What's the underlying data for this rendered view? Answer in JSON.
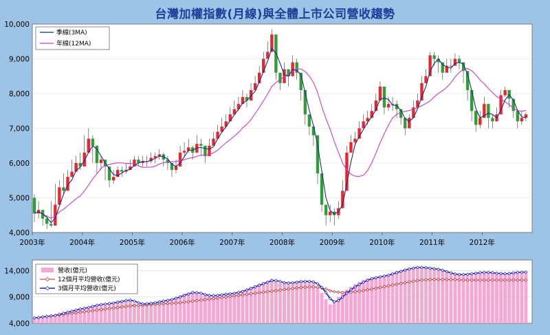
{
  "title": "台灣加權指數(月線)與全體上市公司營收趨勢",
  "colors": {
    "background": "#9dc3e6",
    "plot_bg": "#ffffff",
    "title": "#1f3d99",
    "up_candle": "#e8262e",
    "down_candle": "#2f9e35",
    "ma3": "#1c2a8f",
    "ma12": "#c63fc6",
    "revenue_bar": "#f5a8d2",
    "rev_ma12": "#c0272d",
    "rev_ma3": "#1a22c9"
  },
  "chart_data": [
    {
      "type": "candlestick",
      "name": "index",
      "ylim": [
        4000,
        10000
      ],
      "yticks": [
        "4,000",
        "5,000",
        "6,000",
        "7,000",
        "8,000",
        "9,000",
        "10,000"
      ],
      "yticks_values": [
        4000,
        5000,
        6000,
        7000,
        8000,
        9000,
        10000
      ],
      "xticks": [
        "2003年",
        "2004年",
        "2005年",
        "2006年",
        "2007年",
        "2008年",
        "2009年",
        "2010年",
        "2011年",
        "2012年"
      ],
      "x_start": "2003-01",
      "legend": [
        {
          "label": "季線(3MA)",
          "series": "ma3"
        },
        {
          "label": "年線(12MA)",
          "series": "ma12"
        }
      ],
      "closes": [
        4550,
        4650,
        4400,
        4250,
        4200,
        4800,
        5300,
        5200,
        5600,
        5750,
        6000,
        5900,
        6300,
        6700,
        6500,
        6000,
        6100,
        5900,
        5500,
        5600,
        5800,
        5750,
        5800,
        5900,
        6100,
        6000,
        6050,
        6050,
        6150,
        6200,
        6250,
        6100,
        6000,
        5800,
        5900,
        6300,
        6350,
        6450,
        6300,
        6550,
        6500,
        6200,
        6500,
        6700,
        6900,
        7050,
        7200,
        7400,
        7550,
        7700,
        7900,
        7800,
        8100,
        8300,
        8600,
        9000,
        9200,
        9700,
        8600,
        8300,
        8700,
        8500,
        8900,
        8600,
        8100,
        7400,
        7050,
        6800,
        5700,
        4800,
        4500,
        4600,
        4500,
        4700,
        5200,
        6300,
        6600,
        6700,
        7000,
        7200,
        7300,
        7500,
        7800,
        8200,
        7600,
        7700,
        7700,
        7550,
        7300,
        7000,
        7300,
        7600,
        7800,
        8300,
        8500,
        9100,
        9000,
        8900,
        8600,
        8800,
        8800,
        9000,
        8900,
        8650,
        8100,
        7500,
        7100,
        7300,
        7700,
        7300,
        7200,
        7400,
        7950,
        8100,
        7850,
        7500,
        7200,
        7300,
        7400
      ],
      "ranges": [
        [
          4300,
          5100
        ],
        [
          4400,
          4900
        ],
        [
          4200,
          4600
        ],
        [
          4100,
          4500
        ],
        [
          4150,
          4900
        ],
        [
          4700,
          5400
        ],
        [
          5100,
          5500
        ],
        [
          5100,
          5700
        ],
        [
          5500,
          5800
        ],
        [
          5700,
          6100
        ],
        [
          5800,
          6200
        ],
        [
          5800,
          6300
        ],
        [
          6200,
          6800
        ],
        [
          6300,
          7000
        ],
        [
          6000,
          6800
        ],
        [
          5700,
          6200
        ],
        [
          5800,
          6200
        ],
        [
          5500,
          6100
        ],
        [
          5300,
          5700
        ],
        [
          5400,
          5800
        ],
        [
          5600,
          5900
        ],
        [
          5600,
          5900
        ],
        [
          5700,
          6000
        ],
        [
          5800,
          6100
        ],
        [
          5900,
          6200
        ],
        [
          5900,
          6200
        ],
        [
          5900,
          6200
        ],
        [
          5900,
          6200
        ],
        [
          6000,
          6300
        ],
        [
          6000,
          6300
        ],
        [
          6100,
          6400
        ],
        [
          5900,
          6300
        ],
        [
          5800,
          6200
        ],
        [
          5600,
          6000
        ],
        [
          5700,
          6100
        ],
        [
          6100,
          6500
        ],
        [
          6200,
          6600
        ],
        [
          6300,
          6700
        ],
        [
          6100,
          6500
        ],
        [
          6400,
          6800
        ],
        [
          6200,
          6700
        ],
        [
          6000,
          6400
        ],
        [
          6300,
          6700
        ],
        [
          6500,
          6900
        ],
        [
          6700,
          7100
        ],
        [
          6900,
          7300
        ],
        [
          7000,
          7400
        ],
        [
          7200,
          7600
        ],
        [
          7400,
          7800
        ],
        [
          7500,
          7900
        ],
        [
          7700,
          8100
        ],
        [
          7600,
          8000
        ],
        [
          7900,
          8300
        ],
        [
          8100,
          8500
        ],
        [
          8400,
          8800
        ],
        [
          8800,
          9200
        ],
        [
          9000,
          9500
        ],
        [
          9400,
          9850
        ],
        [
          8400,
          9100
        ],
        [
          8100,
          8600
        ],
        [
          8400,
          8900
        ],
        [
          8200,
          8700
        ],
        [
          8600,
          9100
        ],
        [
          8400,
          9000
        ],
        [
          7800,
          8400
        ],
        [
          7100,
          7700
        ],
        [
          6800,
          7300
        ],
        [
          6500,
          7100
        ],
        [
          5400,
          6100
        ],
        [
          4600,
          5200
        ],
        [
          4200,
          4700
        ],
        [
          4300,
          4800
        ],
        [
          4200,
          4700
        ],
        [
          4400,
          4900
        ],
        [
          4900,
          5500
        ],
        [
          5900,
          6500
        ],
        [
          6300,
          6800
        ],
        [
          6500,
          6900
        ],
        [
          6800,
          7200
        ],
        [
          7000,
          7400
        ],
        [
          7100,
          7500
        ],
        [
          7300,
          7700
        ],
        [
          7600,
          8000
        ],
        [
          7900,
          8350
        ],
        [
          7400,
          8000
        ],
        [
          7500,
          7900
        ],
        [
          7500,
          7900
        ],
        [
          7300,
          7800
        ],
        [
          7100,
          7500
        ],
        [
          6800,
          7200
        ],
        [
          7000,
          7400
        ],
        [
          7400,
          7800
        ],
        [
          7600,
          8000
        ],
        [
          8100,
          8500
        ],
        [
          8300,
          8700
        ],
        [
          8800,
          9200
        ],
        [
          8800,
          9200
        ],
        [
          8600,
          9100
        ],
        [
          8400,
          8800
        ],
        [
          8600,
          9000
        ],
        [
          8600,
          9000
        ],
        [
          8800,
          9150
        ],
        [
          8700,
          9100
        ],
        [
          8300,
          8800
        ],
        [
          7800,
          8300
        ],
        [
          7200,
          7700
        ],
        [
          6900,
          7400
        ],
        [
          7000,
          7500
        ],
        [
          7400,
          7900
        ],
        [
          7000,
          7500
        ],
        [
          7000,
          7400
        ],
        [
          7200,
          7600
        ],
        [
          7700,
          8100
        ],
        [
          7900,
          8200
        ],
        [
          7600,
          8000
        ],
        [
          7300,
          7700
        ],
        [
          7000,
          7400
        ],
        [
          7100,
          7500
        ],
        [
          7200,
          7450
        ]
      ]
    },
    {
      "type": "bar+line",
      "name": "revenue",
      "ylim": [
        4000,
        16000
      ],
      "yticks": [
        "4,000",
        "9,000",
        "14,000"
      ],
      "yticks_values": [
        4000,
        9000,
        14000
      ],
      "x_start": "2003-01",
      "legend": [
        {
          "label": "營收(億元)",
          "series": "revenue"
        },
        {
          "label": "12個月平均營收(億元)",
          "series": "rev_ma12"
        },
        {
          "label": "3個月平均營收(億元)",
          "series": "rev_ma3"
        }
      ],
      "revenue": [
        4800,
        5000,
        5200,
        5400,
        5500,
        5600,
        5800,
        6000,
        6200,
        6400,
        6600,
        6800,
        6900,
        7100,
        7300,
        7500,
        7600,
        7700,
        7800,
        7900,
        8100,
        8300,
        8400,
        8500,
        7800,
        7600,
        7700,
        7800,
        7900,
        8000,
        8200,
        8300,
        8500,
        8700,
        9000,
        9300,
        9600,
        9800,
        10100,
        9700,
        9400,
        9300,
        9200,
        9300,
        9400,
        9500,
        9600,
        9700,
        9800,
        10000,
        10300,
        10600,
        10900,
        11200,
        11500,
        11800,
        12100,
        12400,
        11900,
        11600,
        11600,
        11700,
        11800,
        11900,
        12000,
        12000,
        11900,
        11700,
        11000,
        9800,
        8600,
        7600,
        8200,
        9000,
        9800,
        10400,
        10900,
        11400,
        11800,
        12200,
        12500,
        12700,
        12800,
        12900,
        13100,
        13300,
        13600,
        13900,
        14100,
        14300,
        14500,
        14600,
        14700,
        14600,
        14500,
        14400,
        14300,
        14200,
        14000,
        13700,
        13400,
        13300,
        13200,
        13200,
        13300,
        13400,
        13500,
        13600,
        13700,
        13700,
        13600,
        13500,
        13400,
        13400,
        13400,
        13500,
        13600,
        13700,
        13700
      ],
      "rev_ma12": [
        5000,
        5100,
        5200,
        5300,
        5400,
        5500,
        5600,
        5700,
        5800,
        5900,
        6000,
        6100,
        6200,
        6300,
        6400,
        6500,
        6600,
        6700,
        6800,
        6900,
        7000,
        7100,
        7200,
        7300,
        7350,
        7400,
        7450,
        7500,
        7550,
        7600,
        7650,
        7700,
        7750,
        7800,
        7850,
        7900,
        8000,
        8100,
        8200,
        8300,
        8400,
        8500,
        8600,
        8700,
        8800,
        8900,
        9000,
        9100,
        9200,
        9300,
        9400,
        9500,
        9600,
        9700,
        9800,
        9900,
        10000,
        10100,
        10200,
        10300,
        10400,
        10500,
        10600,
        10700,
        10800,
        10850,
        10900,
        10900,
        10850,
        10700,
        10500,
        10200,
        10000,
        9900,
        9850,
        9850,
        9900,
        10000,
        10100,
        10200,
        10350,
        10500,
        10650,
        10800,
        10950,
        11100,
        11250,
        11400,
        11550,
        11700,
        11850,
        12000,
        12100,
        12200,
        12250,
        12300,
        12300,
        12300,
        12300,
        12300,
        12300,
        12300,
        12250,
        12200,
        12200,
        12200,
        12200,
        12200,
        12200,
        12200,
        12200,
        12200,
        12200,
        12200,
        12200,
        12200,
        12200,
        12200,
        12200
      ],
      "rev_ma3": [
        5000,
        5100,
        5200,
        5300,
        5400,
        5500,
        5700,
        5900,
        6100,
        6300,
        6500,
        6700,
        6850,
        7000,
        7200,
        7400,
        7550,
        7650,
        7750,
        7850,
        8000,
        8150,
        8300,
        8400,
        8200,
        7900,
        7700,
        7700,
        7800,
        7900,
        8050,
        8200,
        8350,
        8500,
        8750,
        9000,
        9300,
        9550,
        9800,
        9800,
        9700,
        9450,
        9300,
        9250,
        9300,
        9400,
        9500,
        9600,
        9700,
        9850,
        10050,
        10300,
        10600,
        10900,
        11200,
        11500,
        11800,
        12100,
        12100,
        11950,
        11700,
        11650,
        11700,
        11800,
        11900,
        11950,
        11950,
        11850,
        11500,
        10800,
        9800,
        8700,
        8100,
        8300,
        9000,
        9700,
        10350,
        10900,
        11350,
        11800,
        12150,
        12450,
        12650,
        12800,
        12950,
        13100,
        13350,
        13600,
        13850,
        14100,
        14300,
        14450,
        14600,
        14600,
        14550,
        14450,
        14350,
        14250,
        14050,
        13800,
        13550,
        13350,
        13250,
        13250,
        13300,
        13400,
        13500,
        13600,
        13650,
        13650,
        13600,
        13500,
        13450,
        13400,
        13450,
        13550,
        13650,
        13700,
        13700
      ]
    }
  ]
}
